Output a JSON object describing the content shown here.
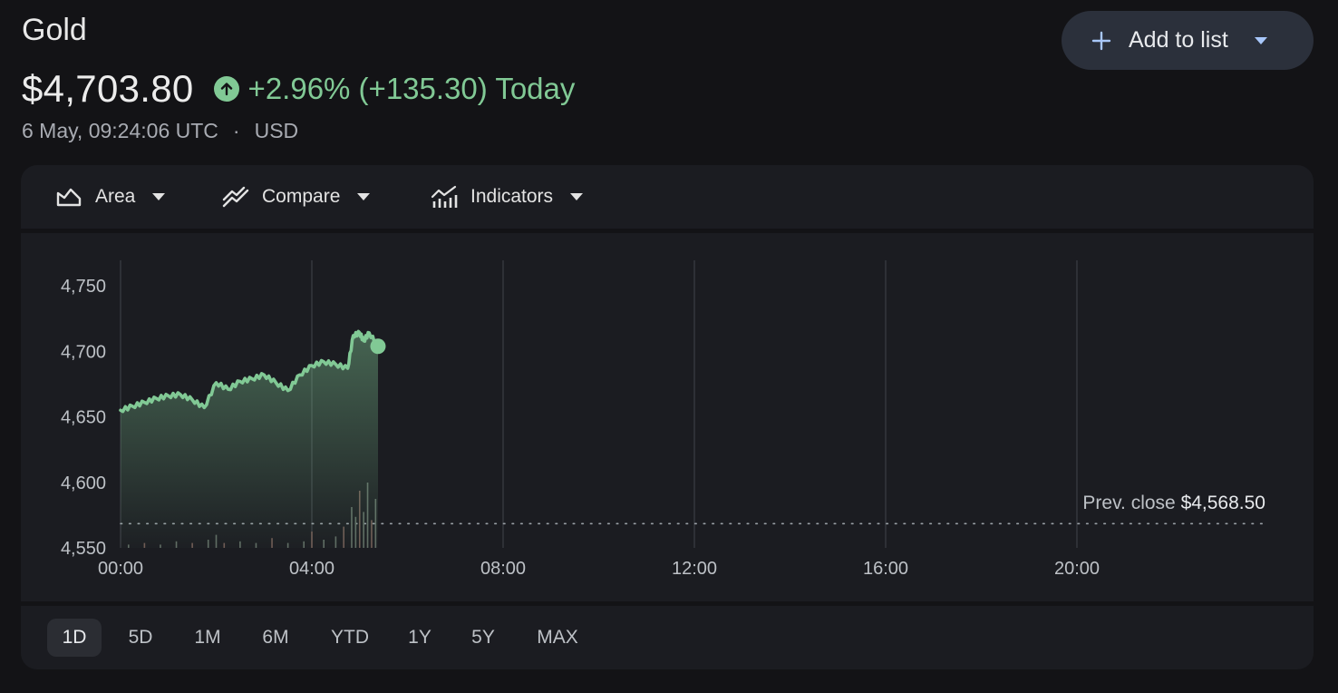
{
  "header": {
    "title": "Gold",
    "price": "$4,703.80",
    "change": "+2.96% (+135.30) Today",
    "timestamp": "6 May, 09:24:06 UTC",
    "separator": "·",
    "currency": "USD",
    "add_button_label": "Add to list"
  },
  "toolbar": {
    "items": [
      {
        "label": "Area",
        "icon": "area-chart-icon"
      },
      {
        "label": "Compare",
        "icon": "compare-icon"
      },
      {
        "label": "Indicators",
        "icon": "indicators-icon"
      }
    ]
  },
  "colors": {
    "positive": "#81c995",
    "background": "#131316",
    "panel": "#1b1c21"
  },
  "chart_data": {
    "type": "area",
    "title": "",
    "xlabel": "",
    "ylabel": "",
    "ylim": [
      4550,
      4750
    ],
    "xlim": [
      "00:00",
      "24:00"
    ],
    "y_ticks": [
      "4,750",
      "4,700",
      "4,650",
      "4,600",
      "4,550"
    ],
    "y_tick_values": [
      4750,
      4700,
      4650,
      4600,
      4550
    ],
    "x_ticks": [
      "00:00",
      "04:00",
      "08:00",
      "12:00",
      "16:00",
      "20:00"
    ],
    "grid": "vertical",
    "series": [
      {
        "color": "#81c995",
        "x": [
          "00:00",
          "00:15",
          "00:30",
          "00:45",
          "01:00",
          "01:15",
          "01:30",
          "01:45",
          "02:00",
          "02:15",
          "02:30",
          "02:45",
          "03:00",
          "03:15",
          "03:30",
          "03:45",
          "04:00",
          "04:15",
          "04:30",
          "04:45",
          "04:52",
          "05:00",
          "05:05",
          "05:12",
          "05:23"
        ],
        "values": [
          4655,
          4658,
          4661,
          4664,
          4666,
          4667,
          4663,
          4657,
          4676,
          4671,
          4677,
          4679,
          4682,
          4676,
          4670,
          4682,
          4689,
          4692,
          4690,
          4687,
          4712,
          4714,
          4708,
          4714,
          4703.8
        ]
      }
    ],
    "previous_close": {
      "label": "Prev. close",
      "value": "$4,568.50",
      "y": 4568.5
    },
    "last_point": {
      "x": "05:23",
      "y": 4703.8
    },
    "volume": {
      "x": [
        "00:10",
        "00:30",
        "00:50",
        "01:10",
        "01:30",
        "01:50",
        "02:00",
        "02:10",
        "02:30",
        "02:50",
        "03:10",
        "03:30",
        "03:50",
        "04:00",
        "04:15",
        "04:30",
        "04:40",
        "04:50",
        "04:55",
        "05:00",
        "05:05",
        "05:10",
        "05:15",
        "05:20"
      ],
      "values": [
        2,
        3,
        2,
        4,
        3,
        5,
        8,
        3,
        4,
        3,
        6,
        3,
        4,
        10,
        5,
        7,
        13,
        25,
        19,
        35,
        22,
        40,
        17,
        30
      ],
      "scale_max": 40
    }
  },
  "ranges": {
    "items": [
      "1D",
      "5D",
      "1M",
      "6M",
      "YTD",
      "1Y",
      "5Y",
      "MAX"
    ],
    "active": "1D"
  }
}
